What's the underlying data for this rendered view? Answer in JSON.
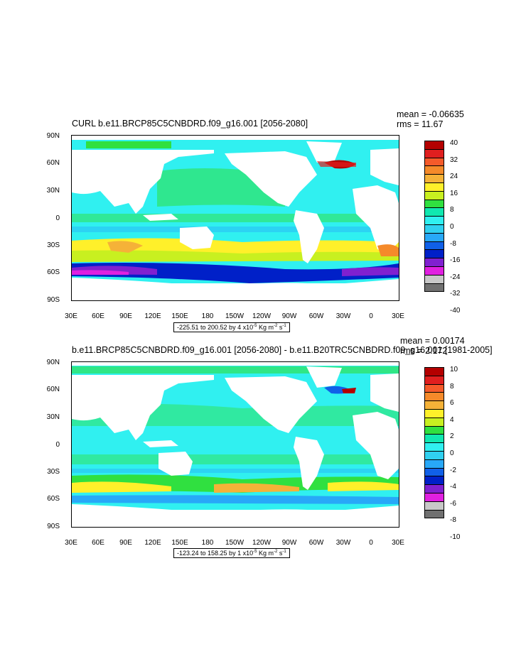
{
  "panels": [
    {
      "title": "CURL b.e11.BRCP85C5CNBDRD.f09_g16.001 [2056-2080]",
      "mean": "mean = -0.06635",
      "rms": "rms = 11.67",
      "range_text": "-225.51 to 200.52 by 4 x10",
      "range_unit": "Kg m",
      "colorbar_labels": [
        "40",
        "32",
        "24",
        "16",
        "8",
        "0",
        "-8",
        "-16",
        "-24",
        "-32",
        "-40"
      ],
      "colors": [
        "#b40000",
        "#e01f1f",
        "#f55a2a",
        "#f58a2a",
        "#f5b238",
        "#fff02a",
        "#c8f020",
        "#30e040",
        "#10e8b0",
        "#30f0f0",
        "#30d0f0",
        "#28a8f8",
        "#1060e8",
        "#0020c8",
        "#8020d0",
        "#e020e0",
        "#c8c8c8",
        "#707070"
      ]
    },
    {
      "title": "b.e11.BRCP85C5CNBDRD.f09_g16.001 [2056-2080] - b.e11.B20TRC5CNBDRD.f09_g16.001 [1981-2005]",
      "mean": "mean = 0.00174",
      "rms": "rms = 2.172",
      "range_text": "-123.24 to 158.25 by 1 x10",
      "range_unit": "Kg m",
      "colorbar_labels": [
        "10",
        "8",
        "6",
        "4",
        "2",
        "0",
        "-2",
        "-4",
        "-6",
        "-8",
        "-10"
      ],
      "colors": [
        "#b40000",
        "#e01f1f",
        "#f55a2a",
        "#f58a2a",
        "#f5b238",
        "#fff02a",
        "#c8f020",
        "#30e040",
        "#10e8b0",
        "#30f0f0",
        "#30d0f0",
        "#28a8f8",
        "#1060e8",
        "#0020c8",
        "#8020d0",
        "#e020e0",
        "#c8c8c8",
        "#707070"
      ]
    }
  ],
  "axes": {
    "lat_labels": [
      "90N",
      "60N",
      "30N",
      "0",
      "30S",
      "60S",
      "90S"
    ],
    "lon_labels": [
      "30E",
      "60E",
      "90E",
      "120E",
      "150E",
      "180",
      "150W",
      "120W",
      "90W",
      "60W",
      "30W",
      "0",
      "30E"
    ]
  },
  "exp": "-5",
  "exp2": "-2",
  "unit_end": "s",
  "exp3": "-1"
}
